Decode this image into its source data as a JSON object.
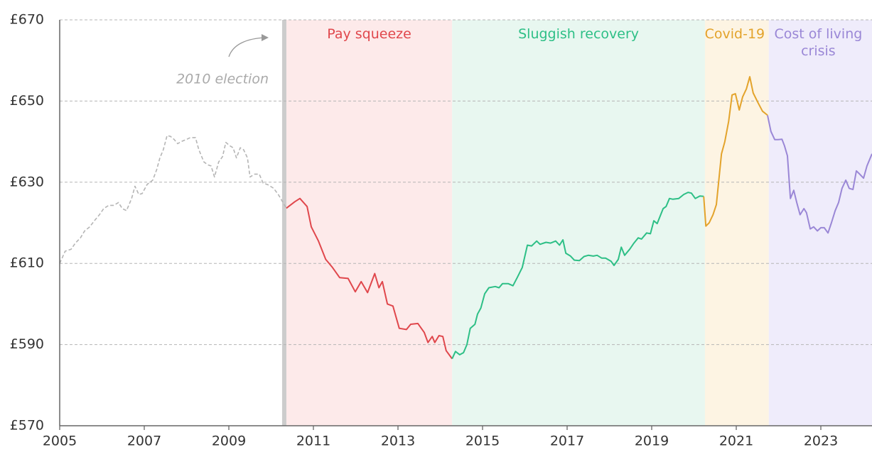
{
  "chart_data": {
    "type": "line",
    "xlim": [
      2005,
      2024.21
    ],
    "xticks": [
      2005,
      2007,
      2009,
      2011,
      2013,
      2015,
      2017,
      2019,
      2021,
      2023
    ],
    "ylim": [
      570,
      670
    ],
    "yticks": [
      {
        "value": 570,
        "label": "£570"
      },
      {
        "value": 590,
        "label": "£590"
      },
      {
        "value": 610,
        "label": "£610"
      },
      {
        "value": 630,
        "label": "£630"
      },
      {
        "value": 650,
        "label": "£650"
      },
      {
        "value": 670,
        "label": "£670"
      }
    ],
    "grid": true,
    "regions": [
      {
        "name": "Pay squeeze",
        "start": 2010.36,
        "end": 2014.28,
        "color": "#fdeaea",
        "text_color": "#e0474c"
      },
      {
        "name": "Sluggish recovery",
        "start": 2014.28,
        "end": 2020.26,
        "color": "#e8f7f0",
        "text_color": "#2dbf86"
      },
      {
        "name": "Covid-19",
        "start": 2020.26,
        "end": 2021.77,
        "color": "#fdf4e3",
        "text_color": "#e3a32b"
      },
      {
        "name": "Cost of living crisis",
        "start": 2021.77,
        "end": 2024.21,
        "color": "#efecfb",
        "text_color": "#9a87d6"
      }
    ],
    "event": {
      "label": "2010 election",
      "x": 2010.31,
      "color": "#cccccc"
    },
    "series": [
      {
        "color": "#b5b5b5",
        "dashed": true,
        "x": [
          2005.0,
          2005.13,
          2005.27,
          2005.37,
          2005.49,
          2005.59,
          2005.71,
          2005.82,
          2005.94,
          2006.04,
          2006.16,
          2006.28,
          2006.39,
          2006.48,
          2006.58,
          2006.7,
          2006.78,
          2006.87,
          2006.95,
          2007.07,
          2007.2,
          2007.29,
          2007.37,
          2007.45,
          2007.54,
          2007.62,
          2007.71,
          2007.79,
          2007.87,
          2007.99,
          2008.09,
          2008.21,
          2008.29,
          2008.41,
          2008.5,
          2008.58,
          2008.66,
          2008.76,
          2008.85,
          2008.93,
          2009.02,
          2009.1,
          2009.18,
          2009.27,
          2009.35,
          2009.44,
          2009.5,
          2009.61,
          2009.72,
          2009.81,
          2009.94,
          2010.06,
          2010.18,
          2010.28,
          2010.36
        ],
        "values": [
          610,
          613,
          613.5,
          615,
          616.3,
          618,
          619,
          620.5,
          622,
          623.5,
          624.3,
          624.3,
          625,
          623.5,
          623,
          626,
          629,
          627,
          627.2,
          629.5,
          630.5,
          633,
          636,
          638,
          641.5,
          641.3,
          640.5,
          639.5,
          640,
          640.5,
          641,
          641,
          638,
          635,
          634.3,
          634,
          631.3,
          635,
          636.3,
          639.8,
          639,
          638.5,
          636,
          638.5,
          638,
          636,
          631.3,
          632,
          632,
          629.8,
          629.3,
          628.5,
          626.8,
          625,
          623.6
        ]
      },
      {
        "color": "#e0474c",
        "dashed": false,
        "x": [
          2010.36,
          2010.56,
          2010.68,
          2010.85,
          2010.95,
          2011.12,
          2011.29,
          2011.45,
          2011.62,
          2011.82,
          2011.99,
          2012.13,
          2012.28,
          2012.45,
          2012.55,
          2012.63,
          2012.75,
          2012.88,
          2013.03,
          2013.2,
          2013.3,
          2013.47,
          2013.62,
          2013.71,
          2013.81,
          2013.87,
          2013.97,
          2014.06,
          2014.14,
          2014.28
        ],
        "values": [
          623.6,
          625.2,
          626,
          624,
          619,
          615.5,
          611,
          609,
          606.5,
          606.3,
          603,
          605.5,
          602.8,
          607.5,
          604,
          605.5,
          600,
          599.5,
          594,
          593.7,
          595,
          595.2,
          593,
          590.5,
          592,
          590.5,
          592.2,
          592,
          588.5,
          586.5
        ]
      },
      {
        "color": "#2dbf86",
        "dashed": false,
        "x": [
          2014.28,
          2014.36,
          2014.46,
          2014.55,
          2014.63,
          2014.71,
          2014.82,
          2014.88,
          2014.96,
          2015.05,
          2015.15,
          2015.3,
          2015.39,
          2015.47,
          2015.61,
          2015.72,
          2015.82,
          2015.94,
          2016.06,
          2016.16,
          2016.28,
          2016.36,
          2016.5,
          2016.61,
          2016.73,
          2016.82,
          2016.9,
          2016.97,
          2017.08,
          2017.17,
          2017.29,
          2017.4,
          2017.5,
          2017.62,
          2017.71,
          2017.82,
          2017.91,
          2018.04,
          2018.11,
          2018.21,
          2018.28,
          2018.36,
          2018.48,
          2018.58,
          2018.68,
          2018.76,
          2018.88,
          2018.97,
          2019.05,
          2019.13,
          2019.27,
          2019.34,
          2019.42,
          2019.5,
          2019.64,
          2019.76,
          2019.86,
          2019.94,
          2020.03,
          2020.14,
          2020.23
        ],
        "values": [
          586.5,
          588.3,
          587.5,
          588,
          590,
          594,
          595,
          597.5,
          599,
          602.5,
          604,
          604.3,
          604,
          605,
          605,
          604.5,
          606.5,
          609,
          614.5,
          614.3,
          615.5,
          614.7,
          615.2,
          615,
          615.5,
          614.5,
          615.8,
          612.5,
          611.8,
          610.8,
          610.7,
          611.7,
          612,
          611.8,
          612,
          611.3,
          611.3,
          610.5,
          609.5,
          611,
          614,
          612,
          613.5,
          615,
          616.3,
          616,
          617.5,
          617.3,
          620.5,
          619.8,
          623.5,
          624,
          626,
          625.8,
          626,
          627,
          627.5,
          627.3,
          626,
          626.6,
          626.5
        ]
      },
      {
        "color": "#e3a32b",
        "dashed": false,
        "x": [
          2020.23,
          2020.28,
          2020.36,
          2020.45,
          2020.53,
          2020.65,
          2020.73,
          2020.82,
          2020.9,
          2020.98,
          2021.07,
          2021.15,
          2021.24,
          2021.32,
          2021.4,
          2021.52,
          2021.62,
          2021.74
        ],
        "values": [
          626.5,
          619.2,
          620,
          622,
          624.5,
          637,
          640,
          645,
          651.5,
          651.8,
          647.8,
          651,
          653,
          656,
          652,
          649.5,
          647.5,
          646.5
        ]
      },
      {
        "color": "#9a87d6",
        "dashed": false,
        "x": [
          2021.74,
          2021.82,
          2021.91,
          2021.99,
          2022.08,
          2022.14,
          2022.21,
          2022.28,
          2022.36,
          2022.43,
          2022.51,
          2022.6,
          2022.66,
          2022.75,
          2022.83,
          2022.92,
          2023.0,
          2023.08,
          2023.17,
          2023.25,
          2023.34,
          2023.42,
          2023.5,
          2023.59,
          2023.67,
          2023.76,
          2023.84,
          2023.92,
          2024.01,
          2024.09,
          2024.21
        ],
        "values": [
          646.5,
          642.5,
          640.5,
          640.5,
          640.6,
          639,
          636.5,
          626,
          628,
          625,
          622,
          623.5,
          622.5,
          618.5,
          619,
          618,
          618.8,
          618.8,
          617.5,
          620,
          623,
          625,
          628.5,
          630.5,
          628.5,
          628.2,
          632.8,
          632,
          631,
          634,
          637
        ]
      }
    ]
  }
}
